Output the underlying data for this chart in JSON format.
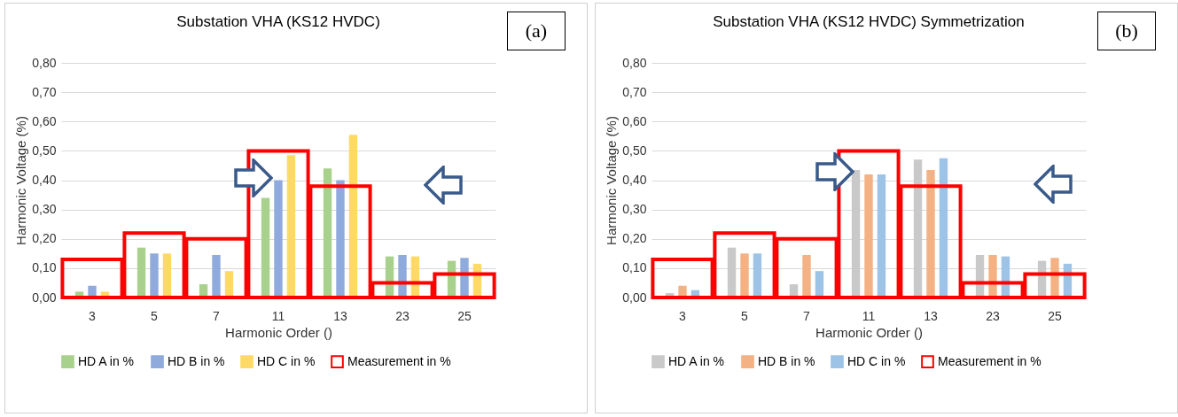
{
  "chart_data": [
    {
      "type": "bar",
      "title": "Substation VHA (KS12 HVDC)",
      "xlabel": "Harmonic Order ()",
      "ylabel": "Harmonic Voltage (%)",
      "categories": [
        "3",
        "5",
        "7",
        "11",
        "13",
        "23",
        "25"
      ],
      "series": [
        {
          "name": "HD A in %",
          "color": "#a9d18e",
          "values": [
            0.02,
            0.17,
            0.045,
            0.34,
            0.44,
            0.14,
            0.125
          ]
        },
        {
          "name": "HD B in %",
          "color": "#8faadc",
          "values": [
            0.04,
            0.15,
            0.145,
            0.4,
            0.4,
            0.145,
            0.135
          ]
        },
        {
          "name": "HD C in %",
          "color": "#ffd966",
          "values": [
            0.02,
            0.15,
            0.09,
            0.485,
            0.555,
            0.14,
            0.115
          ]
        },
        {
          "name": "Measurement in %",
          "type": "bar",
          "color": "#ff0000",
          "values": [
            0.13,
            0.22,
            0.2,
            0.5,
            0.38,
            0.05,
            0.08
          ]
        }
      ],
      "ylim": [
        0,
        0.8
      ],
      "yticks": [
        {
          "value": 0,
          "label": "0,00"
        },
        {
          "value": 0.1,
          "label": "0,10"
        },
        {
          "value": 0.2,
          "label": "0,20"
        },
        {
          "value": 0.3,
          "label": "0,30"
        },
        {
          "value": 0.4,
          "label": "0,40"
        },
        {
          "value": 0.5,
          "label": "0,50"
        },
        {
          "value": 0.6,
          "label": "0,60"
        },
        {
          "value": 0.7,
          "label": "0,70"
        },
        {
          "value": 0.8,
          "label": "0,80"
        }
      ],
      "grid": "y",
      "legend": "bottom",
      "annotations": [
        "(a)"
      ]
    },
    {
      "type": "bar",
      "title": "Substation VHA (KS12 HVDC) Symmetrization",
      "xlabel": "Harmonic Order ()",
      "ylabel": "Harmonic Voltage (%)",
      "categories": [
        "3",
        "5",
        "7",
        "11",
        "13",
        "23",
        "25"
      ],
      "series": [
        {
          "name": "HD A in %",
          "color": "#c9c9c9",
          "values": [
            0.015,
            0.17,
            0.045,
            0.435,
            0.47,
            0.145,
            0.125
          ]
        },
        {
          "name": "HD B in %",
          "color": "#f4b183",
          "values": [
            0.04,
            0.15,
            0.145,
            0.42,
            0.435,
            0.145,
            0.135
          ]
        },
        {
          "name": "HD C in %",
          "color": "#9dc3e6",
          "values": [
            0.025,
            0.15,
            0.09,
            0.42,
            0.475,
            0.14,
            0.115
          ]
        },
        {
          "name": "Measurement in %",
          "type": "bar",
          "color": "#ff0000",
          "values": [
            0.13,
            0.22,
            0.2,
            0.5,
            0.38,
            0.05,
            0.08
          ]
        }
      ],
      "ylim": [
        0,
        0.8
      ],
      "yticks": [
        {
          "value": 0,
          "label": "0,00"
        },
        {
          "value": 0.1,
          "label": "0,10"
        },
        {
          "value": 0.2,
          "label": "0,20"
        },
        {
          "value": 0.3,
          "label": "0,30"
        },
        {
          "value": 0.4,
          "label": "0,40"
        },
        {
          "value": 0.5,
          "label": "0,50"
        },
        {
          "value": 0.6,
          "label": "0,60"
        },
        {
          "value": 0.7,
          "label": "0,70"
        },
        {
          "value": 0.8,
          "label": "0,80"
        }
      ],
      "grid": "y",
      "legend": "bottom",
      "annotations": [
        "(b)"
      ]
    }
  ]
}
